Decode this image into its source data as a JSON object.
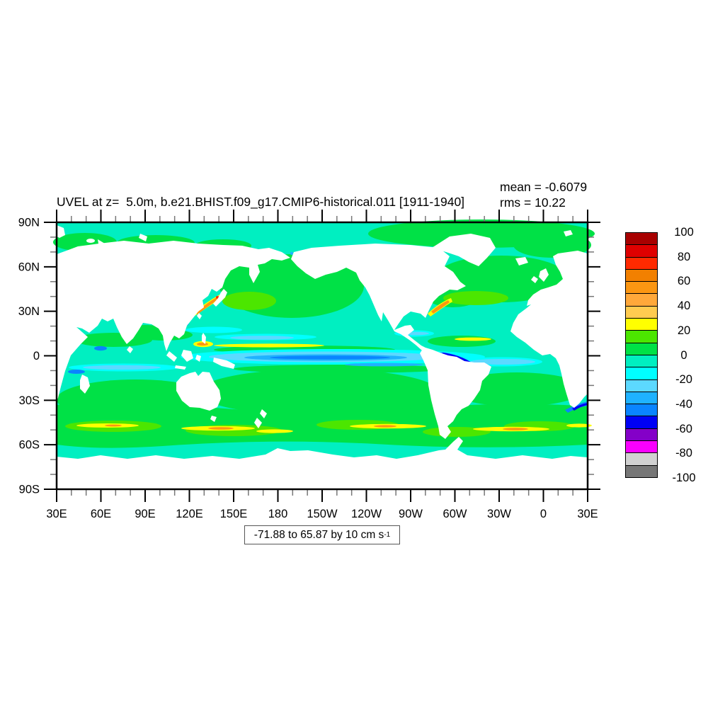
{
  "header": {
    "title": "UVEL at z=  5.0m, b.e21.BHIST.f09_g17.CMIP6-historical.011 [1911-1940]",
    "mean_label": "mean = -0.6079",
    "rms_label": "rms = 10.22"
  },
  "axes": {
    "x": {
      "tick_labels": [
        "30E",
        "60E",
        "90E",
        "120E",
        "150E",
        "180",
        "150W",
        "120W",
        "90W",
        "60W",
        "30W",
        "0",
        "30E"
      ]
    },
    "y": {
      "tick_labels": [
        "90N",
        "60N",
        "30N",
        "0",
        "30S",
        "60S",
        "90S"
      ]
    }
  },
  "colorbar": {
    "colors": [
      "#A80000",
      "#DF0000",
      "#FF2A00",
      "#F28000",
      "#FB9612",
      "#FFA83A",
      "#FFCB50",
      "#FFFF00",
      "#4CE600",
      "#00E146",
      "#00EFC1",
      "#00FFFF",
      "#5CD9FF",
      "#1FB2FF",
      "#0A84FF",
      "#0000F5",
      "#8400C8",
      "#FA00FF",
      "#D1D1D1",
      "#777777"
    ],
    "tick_labels": [
      "100",
      "80",
      "60",
      "40",
      "20",
      "0",
      "-20",
      "-40",
      "-60",
      "-80",
      "-100"
    ]
  },
  "footer": {
    "range_prefix": "-71.88 to 65.87 by 10 cm s",
    "range_sup": "-1"
  },
  "chart_data": {
    "type": "heatmap",
    "subtype": "filled-contour latitude-longitude map (NCL style)",
    "title": "UVEL at z=  5.0m, b.e21.BHIST.f09_g17.CMIP6-historical.011 [1911-1940]",
    "variable": "UVEL",
    "depth": "5.0m",
    "case": "b.e21.BHIST.f09_g17.CMIP6-historical.011",
    "period": "1911-1940",
    "stats": {
      "mean": -0.6079,
      "rms": 10.22
    },
    "units": "cm s-1",
    "field_range": {
      "min": -71.88,
      "max": 65.87,
      "contour_interval": 10
    },
    "levels": [
      -100,
      -90,
      -80,
      -70,
      -60,
      -50,
      -40,
      -30,
      -20,
      -10,
      0,
      10,
      20,
      30,
      40,
      50,
      60,
      70,
      80,
      90,
      100
    ],
    "palette_top_to_bottom": [
      "#A80000",
      "#DF0000",
      "#FF2A00",
      "#F28000",
      "#FB9612",
      "#FFA83A",
      "#FFCB50",
      "#FFFF00",
      "#4CE600",
      "#00E146",
      "#00EFC1",
      "#00FFFF",
      "#5CD9FF",
      "#1FB2FF",
      "#0A84FF",
      "#0000F5",
      "#8400C8",
      "#FA00FF",
      "#D1D1D1",
      "#777777"
    ],
    "x_axis": {
      "tick_labels": [
        "30E",
        "60E",
        "90E",
        "120E",
        "150E",
        "180",
        "150W",
        "120W",
        "90W",
        "60W",
        "30W",
        "0",
        "30E"
      ],
      "range_deg_east": [
        30,
        390
      ],
      "major_step_deg": 30,
      "minor_step_deg": 10
    },
    "y_axis": {
      "tick_labels": [
        "90N",
        "60N",
        "30N",
        "0",
        "30S",
        "60S",
        "90S"
      ],
      "range_deg_north": [
        -90,
        90
      ],
      "major_step_deg": 30,
      "minor_step_deg": 10
    },
    "legend_position": "right vertical labelbar",
    "notable_features": [
      "background ocean mostly -10 to 0 (turquoise) and 0 to 10 (green) cm/s",
      "westward equatorial Pacific jet: cyan/blue band -20 to -50 cm/s near 0N 170E-100W",
      "eastward NECC yellow streak ~5N central Pacific 20-30 cm/s",
      "Kuroshio and Gulf Stream orange streaks 30-60 cm/s",
      "North Brazil Current dark blue/purple streak -50 to -70 cm/s",
      "ACC green band 40S-60S with yellow/orange eastward streaks",
      "Agulhas retroflection dark blue streak near 35S at right edge",
      "land masses white"
    ]
  }
}
